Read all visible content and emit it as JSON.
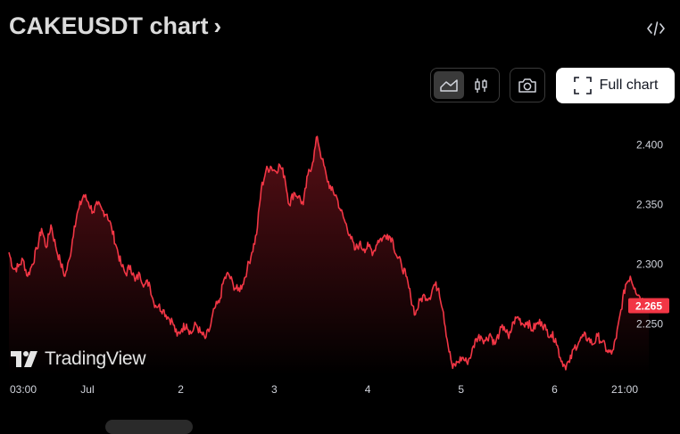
{
  "header": {
    "title": "CAKEUSDT chart",
    "title_chevron": "›",
    "embed_icon": "code-icon"
  },
  "toolbar": {
    "chart_types": [
      {
        "icon": "area-chart-icon",
        "active": true
      },
      {
        "icon": "candlestick-icon",
        "active": false
      }
    ],
    "snapshot_icon": "camera-icon",
    "full_chart_label": "Full chart",
    "full_chart_icon": "expand-icon"
  },
  "watermark": {
    "text": "TradingView",
    "logo_icon": "tradingview-logo-icon"
  },
  "colors": {
    "line": "#f23645",
    "fill_top": "#5a0f16",
    "fill_bottom": "#000000",
    "price_tag": "#f23645"
  },
  "chart_data": {
    "type": "area",
    "symbol": "CAKEUSDT",
    "ylim": [
      2.208,
      2.422
    ],
    "y_ticks": [
      "2.400",
      "2.350",
      "2.300",
      "2.250"
    ],
    "y_tick_values": [
      2.4,
      2.35,
      2.3,
      2.25
    ],
    "last_price": "2.265",
    "last_value": 2.265,
    "x_ticks": [
      {
        "label": "03:00",
        "t": 0.0
      },
      {
        "label": "Jul",
        "t": 0.84
      },
      {
        "label": "2",
        "t": 1.84
      },
      {
        "label": "3",
        "t": 2.84
      },
      {
        "label": "4",
        "t": 3.84
      },
      {
        "label": "5",
        "t": 4.84
      },
      {
        "label": "6",
        "t": 5.84
      },
      {
        "label": "21:00",
        "t": 6.59
      }
    ],
    "t_range": [
      0.0,
      6.59
    ],
    "series": [
      {
        "name": "CAKEUSDT",
        "points": [
          [
            0.0,
            2.31
          ],
          [
            0.05,
            2.296
          ],
          [
            0.1,
            2.298
          ],
          [
            0.15,
            2.304
          ],
          [
            0.2,
            2.29
          ],
          [
            0.25,
            2.3
          ],
          [
            0.3,
            2.313
          ],
          [
            0.35,
            2.33
          ],
          [
            0.4,
            2.314
          ],
          [
            0.45,
            2.333
          ],
          [
            0.5,
            2.315
          ],
          [
            0.55,
            2.302
          ],
          [
            0.6,
            2.29
          ],
          [
            0.65,
            2.305
          ],
          [
            0.7,
            2.332
          ],
          [
            0.75,
            2.347
          ],
          [
            0.8,
            2.358
          ],
          [
            0.85,
            2.352
          ],
          [
            0.9,
            2.344
          ],
          [
            0.95,
            2.35
          ],
          [
            1.0,
            2.345
          ],
          [
            1.05,
            2.342
          ],
          [
            1.1,
            2.33
          ],
          [
            1.15,
            2.315
          ],
          [
            1.2,
            2.3
          ],
          [
            1.25,
            2.292
          ],
          [
            1.3,
            2.299
          ],
          [
            1.35,
            2.286
          ],
          [
            1.4,
            2.292
          ],
          [
            1.45,
            2.283
          ],
          [
            1.5,
            2.285
          ],
          [
            1.55,
            2.268
          ],
          [
            1.6,
            2.265
          ],
          [
            1.65,
            2.262
          ],
          [
            1.7,
            2.256
          ],
          [
            1.75,
            2.252
          ],
          [
            1.8,
            2.24
          ],
          [
            1.85,
            2.246
          ],
          [
            1.9,
            2.25
          ],
          [
            1.95,
            2.242
          ],
          [
            2.0,
            2.25
          ],
          [
            2.05,
            2.243
          ],
          [
            2.1,
            2.238
          ],
          [
            2.15,
            2.246
          ],
          [
            2.2,
            2.263
          ],
          [
            2.25,
            2.268
          ],
          [
            2.3,
            2.287
          ],
          [
            2.35,
            2.292
          ],
          [
            2.4,
            2.283
          ],
          [
            2.45,
            2.278
          ],
          [
            2.5,
            2.283
          ],
          [
            2.55,
            2.296
          ],
          [
            2.6,
            2.31
          ],
          [
            2.65,
            2.325
          ],
          [
            2.7,
            2.363
          ],
          [
            2.75,
            2.378
          ],
          [
            2.8,
            2.382
          ],
          [
            2.85,
            2.378
          ],
          [
            2.9,
            2.383
          ],
          [
            2.95,
            2.374
          ],
          [
            3.0,
            2.35
          ],
          [
            3.05,
            2.36
          ],
          [
            3.1,
            2.357
          ],
          [
            3.15,
            2.35
          ],
          [
            3.2,
            2.375
          ],
          [
            3.25,
            2.385
          ],
          [
            3.3,
            2.407
          ],
          [
            3.35,
            2.388
          ],
          [
            3.4,
            2.373
          ],
          [
            3.45,
            2.362
          ],
          [
            3.5,
            2.358
          ],
          [
            3.55,
            2.345
          ],
          [
            3.6,
            2.335
          ],
          [
            3.65,
            2.325
          ],
          [
            3.7,
            2.312
          ],
          [
            3.75,
            2.317
          ],
          [
            3.8,
            2.313
          ],
          [
            3.85,
            2.315
          ],
          [
            3.9,
            2.31
          ],
          [
            3.95,
            2.32
          ],
          [
            4.0,
            2.322
          ],
          [
            4.05,
            2.325
          ],
          [
            4.1,
            2.322
          ],
          [
            4.15,
            2.307
          ],
          [
            4.2,
            2.3
          ],
          [
            4.25,
            2.29
          ],
          [
            4.3,
            2.273
          ],
          [
            4.35,
            2.258
          ],
          [
            4.4,
            2.27
          ],
          [
            4.45,
            2.274
          ],
          [
            4.5,
            2.272
          ],
          [
            4.55,
            2.283
          ],
          [
            4.6,
            2.28
          ],
          [
            4.65,
            2.26
          ],
          [
            4.7,
            2.232
          ],
          [
            4.75,
            2.213
          ],
          [
            4.8,
            2.218
          ],
          [
            4.85,
            2.222
          ],
          [
            4.9,
            2.218
          ],
          [
            4.95,
            2.225
          ],
          [
            5.0,
            2.238
          ],
          [
            5.05,
            2.24
          ],
          [
            5.1,
            2.236
          ],
          [
            5.15,
            2.242
          ],
          [
            5.2,
            2.233
          ],
          [
            5.25,
            2.243
          ],
          [
            5.3,
            2.248
          ],
          [
            5.35,
            2.238
          ],
          [
            5.4,
            2.252
          ],
          [
            5.45,
            2.256
          ],
          [
            5.5,
            2.25
          ],
          [
            5.55,
            2.252
          ],
          [
            5.6,
            2.245
          ],
          [
            5.65,
            2.25
          ],
          [
            5.7,
            2.252
          ],
          [
            5.75,
            2.245
          ],
          [
            5.8,
            2.241
          ],
          [
            5.85,
            2.238
          ],
          [
            5.9,
            2.222
          ],
          [
            5.95,
            2.215
          ],
          [
            6.0,
            2.218
          ],
          [
            6.05,
            2.23
          ],
          [
            6.1,
            2.235
          ],
          [
            6.15,
            2.24
          ],
          [
            6.2,
            2.238
          ],
          [
            6.25,
            2.233
          ],
          [
            6.3,
            2.24
          ],
          [
            6.35,
            2.235
          ],
          [
            6.4,
            2.228
          ],
          [
            6.45,
            2.225
          ],
          [
            6.5,
            2.238
          ],
          [
            6.55,
            2.262
          ],
          [
            6.6,
            2.283
          ],
          [
            6.65,
            2.29
          ],
          [
            6.7,
            2.28
          ],
          [
            6.75,
            2.273
          ],
          [
            6.8,
            2.268
          ],
          [
            6.85,
            2.265
          ]
        ]
      }
    ]
  }
}
